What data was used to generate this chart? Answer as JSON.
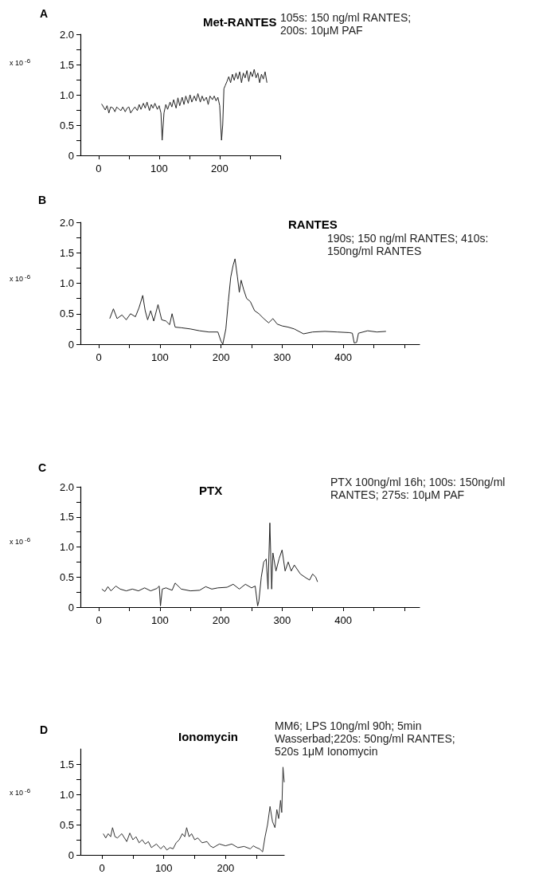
{
  "chart_data": [
    {
      "type": "line",
      "title": "Met-RANTES",
      "subtitle": "105s: 150 ng/ml RANTES; 200s: 10μM PAF",
      "ylabel": "x 10$^{-6}$",
      "annotations": [
        "A"
      ],
      "xlim": [
        -30,
        300
      ],
      "xticks": [
        0,
        {
          "value": 50,
          "label": null
        },
        100,
        {
          "value": 150,
          "label": null
        },
        200,
        {
          "value": 250,
          "label": null
        },
        {
          "value": 300,
          "label": null
        }
      ],
      "ylim": [
        0,
        2
      ],
      "yticks": [
        0,
        {
          "value": 0.25,
          "label": null
        },
        0.5,
        {
          "value": 0.75,
          "label": null
        },
        {
          "value": 1,
          "label": "1.0"
        },
        {
          "value": 1.25,
          "label": null
        },
        1.5,
        {
          "value": 1.75,
          "label": null
        },
        {
          "value": 2,
          "label": "2.0"
        }
      ],
      "series": [
        {
          "color": "#222222",
          "x": [
            5,
            8,
            11,
            14,
            17,
            20,
            24,
            27,
            30,
            34,
            37,
            40,
            44,
            47,
            50,
            53,
            57,
            60,
            64,
            67,
            70,
            74,
            77,
            80,
            84,
            87,
            90,
            93,
            97,
            100,
            103,
            105,
            108,
            111,
            114,
            118,
            121,
            124,
            128,
            131,
            134,
            138,
            141,
            144,
            148,
            151,
            154,
            158,
            161,
            164,
            168,
            171,
            174,
            178,
            181,
            184,
            188,
            191,
            194,
            197,
            200,
            203,
            205,
            207,
            209,
            212,
            215,
            218,
            221,
            224,
            227,
            230,
            233,
            236,
            239,
            242,
            245,
            248,
            251,
            254,
            257,
            260,
            263,
            266,
            269,
            272,
            275,
            278
          ],
          "values": [
            0.85,
            0.8,
            0.75,
            0.82,
            0.7,
            0.8,
            0.78,
            0.72,
            0.8,
            0.76,
            0.74,
            0.8,
            0.72,
            0.78,
            0.8,
            0.7,
            0.76,
            0.8,
            0.74,
            0.84,
            0.76,
            0.86,
            0.78,
            0.88,
            0.74,
            0.84,
            0.78,
            0.86,
            0.76,
            0.82,
            0.7,
            0.25,
            0.7,
            0.84,
            0.76,
            0.88,
            0.8,
            0.92,
            0.78,
            0.95,
            0.82,
            0.96,
            0.84,
            0.98,
            0.86,
            1.0,
            0.88,
            0.98,
            0.9,
            1.02,
            0.88,
            0.98,
            0.9,
            0.96,
            0.84,
            0.98,
            0.92,
            0.98,
            0.9,
            0.96,
            0.82,
            0.25,
            0.5,
            1.1,
            1.15,
            1.22,
            1.3,
            1.2,
            1.34,
            1.24,
            1.36,
            1.26,
            1.38,
            1.2,
            1.36,
            1.28,
            1.4,
            1.22,
            1.38,
            1.3,
            1.42,
            1.28,
            1.36,
            1.2,
            1.34,
            1.26,
            1.38,
            1.2
          ]
        }
      ]
    },
    {
      "type": "line",
      "title": "RANTES",
      "subtitle": "190s; 150 ng/ml RANTES; 410s: 150ng/ml RANTES",
      "ylabel": "x 10$^{-6}$",
      "annotations": [
        "B"
      ],
      "xlim": [
        -30,
        525
      ],
      "xticks": [
        0,
        {
          "value": 50,
          "label": null
        },
        100,
        {
          "value": 150,
          "label": null
        },
        200,
        {
          "value": 250,
          "label": null
        },
        300,
        {
          "value": 350,
          "label": null
        },
        400,
        {
          "value": 450,
          "label": null
        },
        {
          "value": 500,
          "label": null
        }
      ],
      "ylim": [
        0,
        2
      ],
      "yticks": [
        0,
        {
          "value": 0.25,
          "label": null
        },
        0.5,
        {
          "value": 0.75,
          "label": null
        },
        {
          "value": 1,
          "label": "1.0"
        },
        {
          "value": 1.25,
          "label": null
        },
        1.5,
        {
          "value": 1.75,
          "label": null
        },
        {
          "value": 2,
          "label": "2.0"
        }
      ],
      "series": [
        {
          "color": "#222222",
          "x": [
            18,
            24,
            30,
            38,
            45,
            52,
            60,
            66,
            72,
            76,
            80,
            85,
            90,
            97,
            103,
            110,
            116,
            120,
            125,
            135,
            150,
            165,
            180,
            195,
            200,
            203,
            208,
            212,
            216,
            220,
            223,
            227,
            230,
            233,
            237,
            242,
            248,
            255,
            262,
            270,
            278,
            285,
            292,
            300,
            310,
            320,
            335,
            350,
            370,
            390,
            410,
            415,
            418,
            422,
            425,
            440,
            455,
            470
          ],
          "values": [
            0.42,
            0.58,
            0.42,
            0.48,
            0.4,
            0.5,
            0.45,
            0.6,
            0.8,
            0.55,
            0.4,
            0.55,
            0.38,
            0.65,
            0.4,
            0.38,
            0.32,
            0.5,
            0.28,
            0.27,
            0.25,
            0.22,
            0.2,
            0.2,
            0.05,
            0.0,
            0.25,
            0.7,
            1.1,
            1.3,
            1.4,
            1.1,
            0.85,
            1.05,
            0.9,
            0.75,
            0.7,
            0.55,
            0.5,
            0.42,
            0.35,
            0.42,
            0.33,
            0.3,
            0.28,
            0.25,
            0.17,
            0.2,
            0.21,
            0.2,
            0.19,
            0.18,
            0.02,
            0.03,
            0.18,
            0.22,
            0.2,
            0.21
          ]
        }
      ]
    },
    {
      "type": "line",
      "title": "PTX",
      "subtitle": "PTX 100ng/ml 16h; 100s: 150ng/ml RANTES; 275s: 10μM PAF",
      "ylabel": "x 10$^{-6}$",
      "annotations": [
        "C"
      ],
      "xlim": [
        -30,
        525
      ],
      "xticks": [
        0,
        {
          "value": 50,
          "label": null
        },
        100,
        {
          "value": 150,
          "label": null
        },
        200,
        {
          "value": 250,
          "label": null
        },
        300,
        {
          "value": 350,
          "label": null
        },
        400,
        {
          "value": 450,
          "label": null
        },
        {
          "value": 500,
          "label": null
        }
      ],
      "ylim": [
        0,
        2
      ],
      "yticks": [
        0,
        {
          "value": 0.25,
          "label": null
        },
        0.5,
        {
          "value": 0.75,
          "label": null
        },
        {
          "value": 1,
          "label": "1.0"
        },
        {
          "value": 1.25,
          "label": null
        },
        1.5,
        {
          "value": 1.75,
          "label": null
        },
        {
          "value": 2,
          "label": "2.0"
        }
      ],
      "series": [
        {
          "color": "#222222",
          "x": [
            5,
            10,
            15,
            20,
            28,
            35,
            45,
            55,
            65,
            75,
            85,
            95,
            99,
            101,
            104,
            110,
            120,
            125,
            135,
            150,
            165,
            175,
            185,
            195,
            210,
            220,
            230,
            240,
            250,
            256,
            260,
            262,
            266,
            270,
            274,
            277,
            280,
            283,
            285,
            290,
            295,
            300,
            305,
            310,
            315,
            320,
            330,
            340,
            345,
            350,
            355,
            358
          ],
          "values": [
            0.3,
            0.26,
            0.34,
            0.27,
            0.35,
            0.3,
            0.27,
            0.3,
            0.27,
            0.32,
            0.27,
            0.31,
            0.35,
            0.02,
            0.3,
            0.32,
            0.28,
            0.4,
            0.3,
            0.27,
            0.28,
            0.34,
            0.3,
            0.32,
            0.33,
            0.38,
            0.3,
            0.38,
            0.32,
            0.35,
            0.02,
            0.1,
            0.5,
            0.75,
            0.8,
            0.3,
            1.4,
            0.3,
            0.9,
            0.6,
            0.8,
            0.95,
            0.6,
            0.75,
            0.6,
            0.7,
            0.55,
            0.48,
            0.45,
            0.55,
            0.5,
            0.42
          ]
        }
      ]
    },
    {
      "type": "line",
      "title": "Ionomycin",
      "subtitle": "MM6; LPS 10ng/ml 90h; 5min Wasserbad;220s: 50ng/ml RANTES; 520s 1μM Ionomycin",
      "ylabel": "x 10$^{-6}$",
      "annotations": [
        "D"
      ],
      "xlim": [
        -35,
        295
      ],
      "xticks": [
        0,
        {
          "value": 50,
          "label": null
        },
        100,
        {
          "value": 150,
          "label": null
        },
        200,
        {
          "value": 250,
          "label": null
        }
      ],
      "ylim": [
        0,
        1.75
      ],
      "yticks": [
        0,
        {
          "value": 0.25,
          "label": null
        },
        0.5,
        {
          "value": 0.75,
          "label": null
        },
        {
          "value": 1,
          "label": "1.0"
        },
        {
          "value": 1.25,
          "label": null
        },
        1.5
      ],
      "series": [
        {
          "color": "#333333",
          "x": [
            2,
            6,
            10,
            14,
            17,
            21,
            25,
            32,
            40,
            45,
            50,
            55,
            60,
            65,
            70,
            75,
            80,
            88,
            95,
            100,
            105,
            110,
            115,
            120,
            125,
            130,
            134,
            137,
            141,
            145,
            150,
            155,
            162,
            170,
            175,
            180,
            190,
            200,
            210,
            220,
            230,
            240,
            245,
            250,
            255,
            260,
            264,
            268,
            272,
            276,
            280,
            283,
            286,
            289,
            291,
            293,
            295
          ],
          "values": [
            0.35,
            0.28,
            0.35,
            0.3,
            0.45,
            0.3,
            0.28,
            0.35,
            0.22,
            0.36,
            0.25,
            0.3,
            0.2,
            0.25,
            0.18,
            0.22,
            0.12,
            0.18,
            0.1,
            0.15,
            0.08,
            0.12,
            0.1,
            0.2,
            0.25,
            0.35,
            0.3,
            0.45,
            0.3,
            0.35,
            0.25,
            0.28,
            0.2,
            0.22,
            0.15,
            0.12,
            0.18,
            0.15,
            0.18,
            0.12,
            0.14,
            0.1,
            0.15,
            0.12,
            0.1,
            0.05,
            0.3,
            0.5,
            0.8,
            0.55,
            0.45,
            0.75,
            0.6,
            0.9,
            0.7,
            1.45,
            1.2
          ]
        }
      ]
    }
  ]
}
